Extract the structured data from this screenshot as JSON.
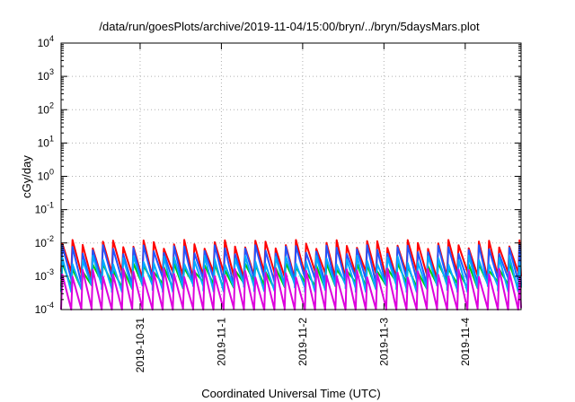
{
  "chart_data": {
    "type": "line",
    "title": "/data/run/goesPlots/archive/2019-11-04/15:00/bryn/../bryn/5daysMars.plot",
    "xlabel": "Coordinated Universal Time (UTC)",
    "ylabel": "cGy/day",
    "x_scale": "time",
    "y_scale": "log",
    "xlim": [
      "2019-10-30T00:40",
      "2019-11-04T16:30"
    ],
    "ylim": [
      0.0001,
      10000
    ],
    "x_ticks": [
      "2019-10-31",
      "2019-11-1",
      "2019-11-2",
      "2019-11-3",
      "2019-11-4"
    ],
    "y_ticks": [
      {
        "base": "10",
        "exp": "4"
      },
      {
        "base": "10",
        "exp": "3"
      },
      {
        "base": "10",
        "exp": "2"
      },
      {
        "base": "10",
        "exp": "1"
      },
      {
        "base": "10",
        "exp": "0"
      },
      {
        "base": "10",
        "exp": "-1"
      },
      {
        "base": "10",
        "exp": "-2"
      },
      {
        "base": "10",
        "exp": "-3"
      },
      {
        "base": "10",
        "exp": "-4"
      }
    ],
    "grid": true,
    "legend": "none",
    "cycle_hours": 3,
    "series": [
      {
        "color": "#ff0000",
        "peak": 0.0095,
        "trough": 0.0011
      },
      {
        "color": "#2255ff",
        "peak": 0.0066,
        "trough": 0.00072
      },
      {
        "color": "#00cc00",
        "peak": 0.0019,
        "trough": 0.00055
      },
      {
        "color": "#00aaff",
        "peak": 0.0032,
        "trough": 0.00045
      },
      {
        "color": "#dd00dd",
        "peak": 0.0013,
        "trough": 9e-05
      }
    ]
  }
}
